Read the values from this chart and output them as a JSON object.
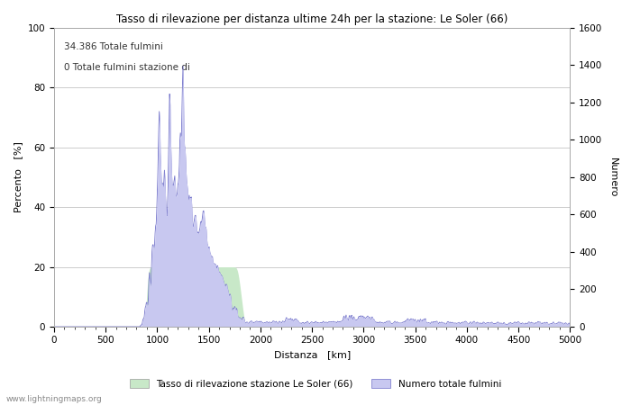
{
  "title": "Tasso di rilevazione per distanza ultime 24h per la stazione: Le Soler (66)",
  "xlabel": "Distanza   [km]",
  "ylabel_left": "Percento   [%]",
  "ylabel_right": "Numero",
  "annotation_line1": "34.386 Totale fulmini",
  "annotation_line2": "0 Totale fulmini stazione di",
  "legend_label1": "Tasso di rilevazione stazione Le Soler (66)",
  "legend_label2": "Numero totale fulmini",
  "xlim": [
    0,
    5000
  ],
  "ylim_left": [
    0,
    100
  ],
  "ylim_right": [
    0,
    1600
  ],
  "xticks": [
    0,
    500,
    1000,
    1500,
    2000,
    2500,
    3000,
    3500,
    4000,
    4500,
    5000
  ],
  "yticks_left": [
    0,
    20,
    40,
    60,
    80,
    100
  ],
  "yticks_right": [
    0,
    200,
    400,
    600,
    800,
    1000,
    1200,
    1400,
    1600
  ],
  "fill_color_blue": "#c8c8f0",
  "fill_color_green": "#c8e8c8",
  "line_color_blue": "#7070c8",
  "watermark": "www.lightningmaps.org",
  "background_color": "#ffffff",
  "grid_color": "#cccccc"
}
